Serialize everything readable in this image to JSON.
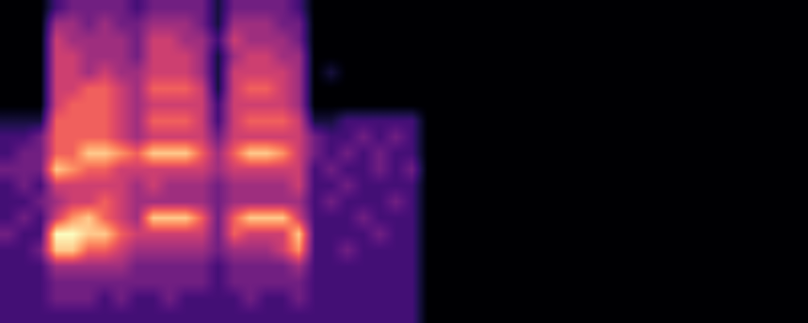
{
  "chart_data": {
    "type": "heatmap",
    "color": "magma",
    "tick_labels": false,
    "cells": [
      [
        0,
        0,
        0,
        2,
        3,
        3,
        3,
        3,
        2,
        3,
        3,
        3,
        3,
        1,
        3,
        3,
        3,
        3,
        2,
        0,
        0,
        0,
        0,
        0,
        0,
        0,
        0,
        0,
        0,
        0,
        0,
        0,
        0,
        0,
        0,
        0,
        0,
        0,
        0,
        0,
        0,
        0,
        0,
        0,
        0,
        0,
        0,
        0,
        0,
        0
      ],
      [
        0,
        0,
        0,
        4,
        4,
        3,
        4,
        3,
        3,
        4,
        4,
        4,
        3,
        1,
        4,
        4,
        4,
        3,
        3,
        0,
        0,
        0,
        0,
        0,
        0,
        0,
        0,
        0,
        0,
        0,
        0,
        0,
        0,
        0,
        0,
        0,
        0,
        0,
        0,
        0,
        0,
        0,
        0,
        0,
        0,
        0,
        0,
        0,
        0,
        0
      ],
      [
        0,
        0,
        0,
        5,
        4,
        4,
        4,
        4,
        3,
        5,
        5,
        4,
        4,
        2,
        5,
        4,
        4,
        4,
        3,
        0,
        0,
        0,
        0,
        0,
        0,
        0,
        0,
        0,
        0,
        0,
        0,
        0,
        0,
        0,
        0,
        0,
        0,
        0,
        0,
        0,
        0,
        0,
        0,
        0,
        0,
        0,
        0,
        0,
        0,
        0
      ],
      [
        0,
        0,
        0,
        5,
        5,
        4,
        4,
        4,
        3,
        5,
        5,
        5,
        4,
        1,
        4,
        5,
        5,
        4,
        4,
        0,
        0,
        0,
        0,
        0,
        0,
        0,
        0,
        0,
        0,
        0,
        0,
        0,
        0,
        0,
        0,
        0,
        0,
        0,
        0,
        0,
        0,
        0,
        0,
        0,
        0,
        0,
        0,
        0,
        0,
        0
      ],
      [
        0,
        0,
        0,
        5,
        5,
        4,
        5,
        4,
        4,
        5,
        5,
        5,
        4,
        1,
        5,
        5,
        5,
        5,
        4,
        0,
        1,
        0,
        0,
        0,
        0,
        0,
        0,
        0,
        0,
        0,
        0,
        0,
        0,
        0,
        0,
        0,
        0,
        0,
        0,
        0,
        0,
        0,
        0,
        0,
        0,
        0,
        0,
        0,
        0,
        0
      ],
      [
        0,
        0,
        0,
        5,
        5,
        6,
        6,
        5,
        4,
        6,
        6,
        6,
        5,
        1,
        5,
        6,
        6,
        5,
        4,
        0,
        0,
        0,
        0,
        0,
        0,
        0,
        0,
        0,
        0,
        0,
        0,
        0,
        0,
        0,
        0,
        0,
        0,
        0,
        0,
        0,
        0,
        0,
        0,
        0,
        0,
        0,
        0,
        0,
        0,
        0
      ],
      [
        0,
        0,
        0,
        5,
        6,
        6,
        6,
        5,
        4,
        5,
        5,
        5,
        5,
        2,
        5,
        5,
        5,
        5,
        4,
        0,
        0,
        0,
        0,
        0,
        0,
        0,
        0,
        0,
        0,
        0,
        0,
        0,
        0,
        0,
        0,
        0,
        0,
        0,
        0,
        0,
        0,
        0,
        0,
        0,
        0,
        0,
        0,
        0,
        0,
        0
      ],
      [
        1,
        1,
        1,
        6,
        6,
        6,
        6,
        5,
        4,
        6,
        6,
        6,
        5,
        2,
        5,
        6,
        6,
        6,
        5,
        1,
        1,
        2,
        2,
        2,
        2,
        2,
        0,
        0,
        0,
        0,
        0,
        0,
        0,
        0,
        0,
        0,
        0,
        0,
        0,
        0,
        0,
        0,
        0,
        0,
        0,
        0,
        0,
        0,
        0,
        0
      ],
      [
        2,
        2,
        3,
        6,
        6,
        6,
        6,
        5,
        4,
        5,
        5,
        5,
        5,
        3,
        5,
        5,
        5,
        5,
        5,
        3,
        2,
        2,
        3,
        2,
        3,
        2,
        0,
        0,
        0,
        0,
        0,
        0,
        0,
        0,
        0,
        0,
        0,
        0,
        0,
        0,
        0,
        0,
        0,
        0,
        0,
        0,
        0,
        0,
        0,
        0
      ],
      [
        2,
        3,
        3,
        6,
        6,
        8,
        8,
        7,
        6,
        8,
        8,
        8,
        6,
        4,
        6,
        8,
        8,
        7,
        5,
        3,
        2,
        3,
        2,
        3,
        2,
        2,
        0,
        0,
        0,
        0,
        0,
        0,
        0,
        0,
        0,
        0,
        0,
        0,
        0,
        0,
        0,
        0,
        0,
        0,
        0,
        0,
        0,
        0,
        0,
        0
      ],
      [
        3,
        3,
        3,
        8,
        7,
        6,
        6,
        5,
        5,
        5,
        5,
        5,
        5,
        4,
        5,
        5,
        5,
        5,
        5,
        2,
        3,
        2,
        2,
        3,
        2,
        3,
        0,
        0,
        0,
        0,
        0,
        0,
        0,
        0,
        0,
        0,
        0,
        0,
        0,
        0,
        0,
        0,
        0,
        0,
        0,
        0,
        0,
        0,
        0,
        0
      ],
      [
        2,
        3,
        2,
        5,
        5,
        5,
        5,
        5,
        4,
        5,
        4,
        4,
        4,
        3,
        4,
        4,
        4,
        4,
        5,
        2,
        2,
        3,
        2,
        2,
        2,
        2,
        0,
        0,
        0,
        0,
        0,
        0,
        0,
        0,
        0,
        0,
        0,
        0,
        0,
        0,
        0,
        0,
        0,
        0,
        0,
        0,
        0,
        0,
        0,
        0
      ],
      [
        2,
        2,
        3,
        4,
        5,
        5,
        6,
        5,
        4,
        4,
        4,
        4,
        4,
        3,
        4,
        4,
        4,
        4,
        4,
        2,
        3,
        2,
        2,
        2,
        3,
        2,
        0,
        0,
        0,
        0,
        0,
        0,
        0,
        0,
        0,
        0,
        0,
        0,
        0,
        0,
        0,
        0,
        0,
        0,
        0,
        0,
        0,
        0,
        0,
        0
      ],
      [
        2,
        3,
        2,
        5,
        7,
        8,
        6,
        5,
        4,
        8,
        8,
        8,
        6,
        3,
        6,
        8,
        8,
        8,
        5,
        2,
        2,
        2,
        3,
        2,
        2,
        2,
        0,
        0,
        0,
        0,
        0,
        0,
        0,
        0,
        0,
        0,
        0,
        0,
        0,
        0,
        0,
        0,
        0,
        0,
        0,
        0,
        0,
        0,
        0,
        0
      ],
      [
        3,
        2,
        2,
        9,
        9,
        8,
        8,
        6,
        5,
        5,
        5,
        5,
        5,
        3,
        6,
        5,
        5,
        5,
        8,
        2,
        2,
        2,
        2,
        3,
        2,
        2,
        0,
        0,
        0,
        0,
        0,
        0,
        0,
        0,
        0,
        0,
        0,
        0,
        0,
        0,
        0,
        0,
        0,
        0,
        0,
        0,
        0,
        0,
        0,
        0
      ],
      [
        2,
        2,
        3,
        8,
        8,
        6,
        6,
        5,
        4,
        4,
        4,
        4,
        4,
        3,
        4,
        4,
        4,
        5,
        7,
        2,
        2,
        3,
        2,
        2,
        2,
        2,
        0,
        0,
        0,
        0,
        0,
        0,
        0,
        0,
        0,
        0,
        0,
        0,
        0,
        0,
        0,
        0,
        0,
        0,
        0,
        0,
        0,
        0,
        0,
        0
      ],
      [
        2,
        2,
        2,
        4,
        4,
        4,
        4,
        4,
        3,
        3,
        3,
        3,
        3,
        2,
        3,
        3,
        3,
        3,
        4,
        2,
        2,
        2,
        2,
        2,
        2,
        2,
        0,
        0,
        0,
        0,
        0,
        0,
        0,
        0,
        0,
        0,
        0,
        0,
        0,
        0,
        0,
        0,
        0,
        0,
        0,
        0,
        0,
        0,
        0,
        0
      ],
      [
        2,
        2,
        2,
        3,
        3,
        3,
        3,
        3,
        3,
        3,
        3,
        3,
        3,
        2,
        3,
        3,
        3,
        3,
        3,
        2,
        2,
        2,
        2,
        2,
        2,
        2,
        0,
        0,
        0,
        0,
        0,
        0,
        0,
        0,
        0,
        0,
        0,
        0,
        0,
        0,
        0,
        0,
        0,
        0,
        0,
        0,
        0,
        0,
        0,
        0
      ],
      [
        2,
        2,
        2,
        3,
        3,
        3,
        2,
        3,
        2,
        2,
        3,
        2,
        2,
        2,
        2,
        3,
        2,
        2,
        3,
        2,
        2,
        2,
        2,
        2,
        2,
        2,
        0,
        0,
        0,
        0,
        0,
        0,
        0,
        0,
        0,
        0,
        0,
        0,
        0,
        0,
        0,
        0,
        0,
        0,
        0,
        0,
        0,
        0,
        0,
        0
      ],
      [
        2,
        2,
        2,
        2,
        2,
        2,
        2,
        2,
        2,
        2,
        2,
        2,
        2,
        2,
        2,
        2,
        2,
        2,
        2,
        2,
        2,
        2,
        2,
        2,
        2,
        2,
        0,
        0,
        0,
        0,
        0,
        0,
        0,
        0,
        0,
        0,
        0,
        0,
        0,
        0,
        0,
        0,
        0,
        0,
        0,
        0,
        0,
        0,
        0,
        0
      ]
    ]
  }
}
